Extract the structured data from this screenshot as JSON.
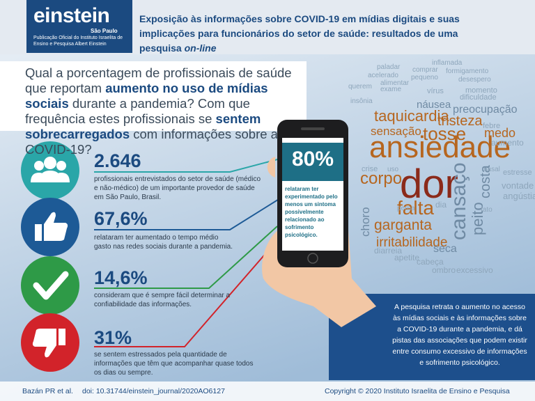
{
  "header": {
    "logo": "einstein",
    "logo_sub": "São Paulo",
    "logo_caption": "Publicação Oficial do Instituto Israelita de Ensino e Pesquisa Albert Einstein",
    "title": "Exposição às informações sobre COVID-19 em mídias digitais e suas implicações para funcionários do setor de saúde: resultados de uma pesquisa ",
    "title_italic": "on-line"
  },
  "question": [
    "Qual a porcentagem de profissionais de saúde que reportam ",
    "aumento no uso de mídias sociais",
    " durante a pandemia? Com que frequência estes profissionais se ",
    "sentem sobrecarregados",
    " com informações sobre a COVID-19?"
  ],
  "stats": [
    {
      "value": "2.646",
      "text": "profissionais entrevistados do setor de saúde (médico e não-médico) de um importante provedor de saúde em São Paulo, Brasil."
    },
    {
      "value": "67,6%",
      "text": "relataram ter aumentado o tempo médio gasto nas redes sociais durante a pandemia."
    },
    {
      "value": "14,6%",
      "text": "consideram que é sempre fácil determinar a confiabilidade das informações."
    },
    {
      "value": "31%",
      "text": "se sentem estressados pela quantidade de informações que têm que acompanhar quase todos os dias ou sempre."
    }
  ],
  "phone": {
    "value": "80%",
    "text": "relataram ter experimentado pelo menos um sintoma possivelmente relacionado ao sofrimento psicológico."
  },
  "info": "A pesquisa retrata o aumento no acesso às mídias sociais e às informações sobre a COVID-19 durante a pandemia, e dá pistas das associações que podem existir entre consumo excessivo de informações e sofrimento psicológico.",
  "word_cloud": [
    "ansiedade",
    "dor",
    "falta",
    "tosse",
    "taquicardia",
    "sensação",
    "tristeza",
    "medo",
    "corpo",
    "garganta",
    "irritabilidade",
    "cansaço",
    "peito",
    "costa",
    "choro",
    "preocupação",
    "náusea",
    "vontade",
    "angústia",
    "seca",
    "cabeça",
    "ombro",
    "excessivo",
    "apetite",
    "diarreia",
    "dificuldade",
    "momento",
    "vírus",
    "inflamada",
    "paladar",
    "comprar",
    "formigamento",
    "acelerado",
    "pequeno",
    "desespero",
    "querem",
    "alimentar",
    "exame",
    "insônia",
    "aumento",
    "estresse",
    "nasal",
    "febre",
    "dia",
    "fato",
    "crise",
    "uso",
    "perna"
  ],
  "footer": {
    "citation": "Bazán PR et al.",
    "doi": "doi: 10.31744/einstein_journal/2020AO6127",
    "copyright": "Copyright © 2020 Instituto Israelita de Ensino e Pesquisa"
  }
}
